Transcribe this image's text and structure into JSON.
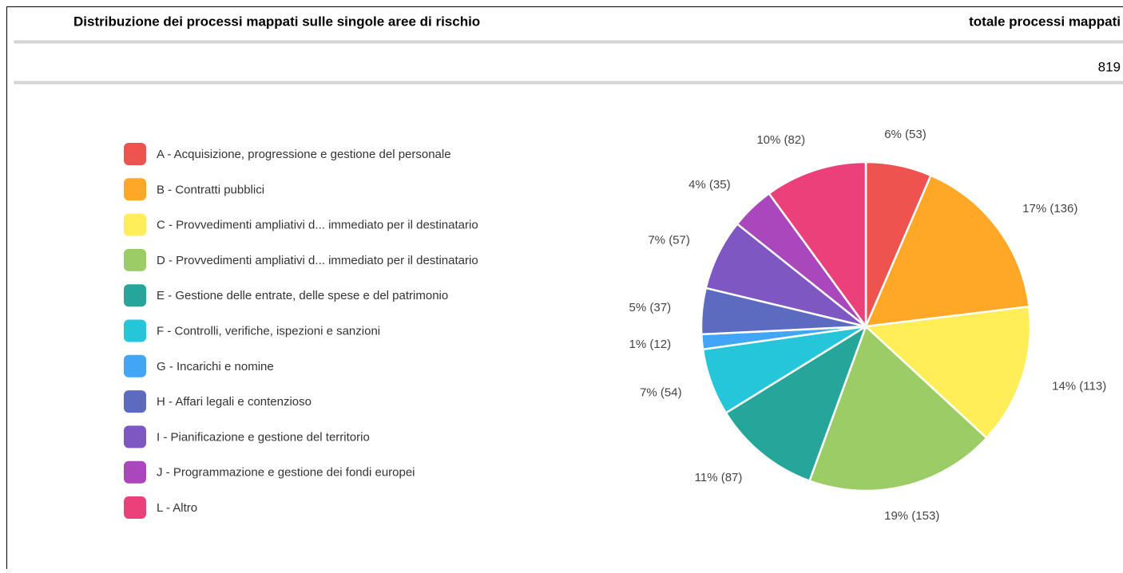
{
  "header": {
    "title": "Distribuzione dei processi mappati sulle singole aree di rischio",
    "total_label": "totale processi mappati",
    "total_value": 819
  },
  "chart_data": {
    "type": "pie",
    "categories": [
      "A - Acquisizione, progressione e gestione del personale",
      "B - Contratti pubblici",
      "C - Provvedimenti ampliativi d... immediato per il destinatario",
      "D - Provvedimenti ampliativi d... immediato per il destinatario",
      "E - Gestione delle entrate, delle spese e del patrimonio",
      "F - Controlli, verifiche, ispezioni e sanzioni",
      "G - Incarichi e nomine",
      "H - Affari legali e contenzioso",
      "I - Pianificazione e gestione del territorio",
      "J - Programmazione e gestione dei fondi europei",
      "L - Altro"
    ],
    "values": [
      53,
      136,
      113,
      153,
      87,
      54,
      12,
      37,
      57,
      35,
      82
    ],
    "value_labels": [
      "6% (53)",
      "17% (136)",
      "14% (113)",
      "19% (153)",
      "11% (87)",
      "7% (54)",
      "1% (12)",
      "5% (37)",
      "7% (57)",
      "4% (35)",
      "10% (82)"
    ],
    "colors": [
      "#ef5350",
      "#ffa726",
      "#ffee58",
      "#9ccc65",
      "#26a69a",
      "#26c6da",
      "#42a5f5",
      "#5c6bc0",
      "#7e57c2",
      "#ab47bc",
      "#ec407a"
    ]
  }
}
